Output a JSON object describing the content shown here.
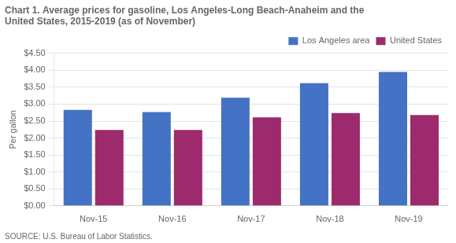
{
  "chart_data": {
    "type": "bar",
    "title": [
      "Chart 1. Average prices for gasoline, Los Angeles-Long Beach-Anaheim and the",
      "United States, 2015-2019 (as of November)"
    ],
    "ylabel": "Per gallon",
    "annotations": [
      "SOURCE: U.S. Bureau of Labor Statistics."
    ],
    "categories": [
      "Nov-15",
      "Nov-16",
      "Nov-17",
      "Nov-18",
      "Nov-19"
    ],
    "series": [
      {
        "name": "Los Angeles area",
        "color": "#4472C4",
        "values": [
          2.83,
          2.77,
          3.19,
          3.62,
          3.95
        ]
      },
      {
        "name": "United States",
        "color": "#9E2A6E",
        "values": [
          2.24,
          2.24,
          2.61,
          2.74,
          2.68
        ]
      }
    ],
    "ylim": [
      0,
      4.5
    ],
    "yticks": [
      {
        "value": 0,
        "label": "$0.00"
      },
      {
        "value": 0.5,
        "label": "$0.50"
      },
      {
        "value": 1,
        "label": "$1.00"
      },
      {
        "value": 1.5,
        "label": "$1.50"
      },
      {
        "value": 2,
        "label": "$2.00"
      },
      {
        "value": 2.5,
        "label": "$2.50"
      },
      {
        "value": 3,
        "label": "$3.00"
      },
      {
        "value": 3.5,
        "label": "$3.50"
      },
      {
        "value": 4,
        "label": "$4.00"
      },
      {
        "value": 4.5,
        "label": "$4.50"
      }
    ],
    "grid": true,
    "legend": "upper right"
  }
}
